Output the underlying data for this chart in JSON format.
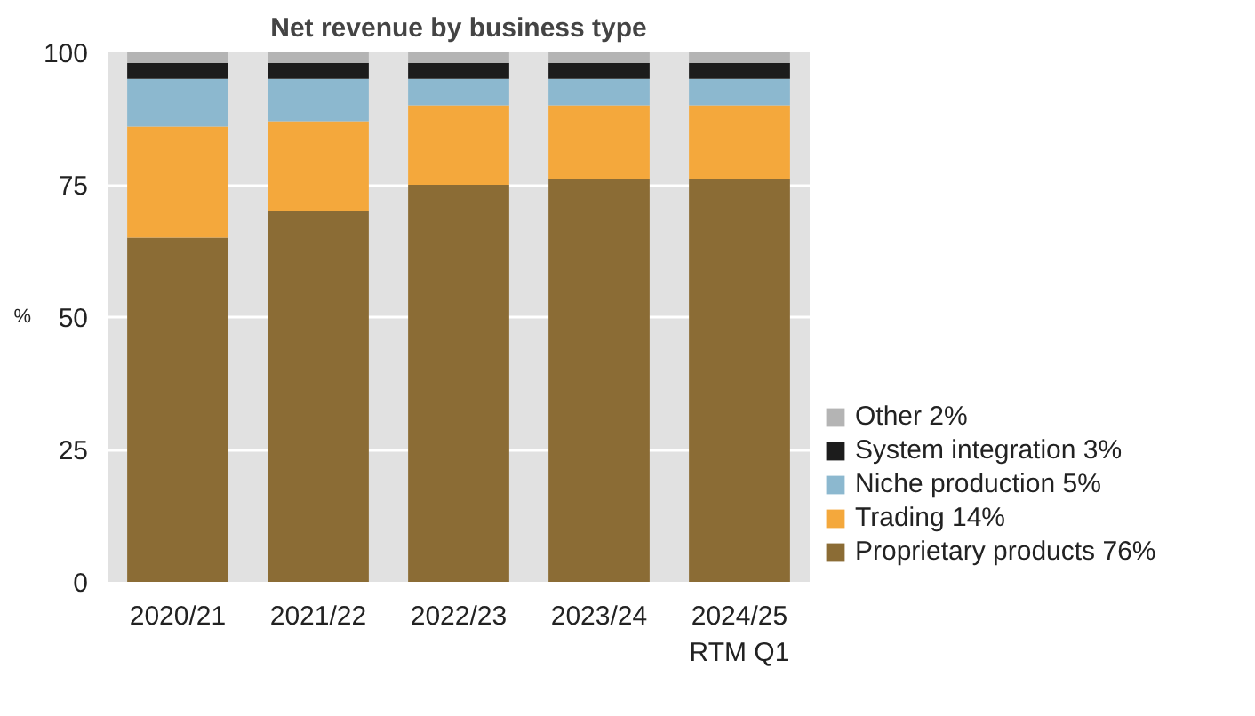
{
  "chart_data": {
    "type": "bar",
    "title": "Net revenue by business type",
    "ylabel": "%",
    "stacked": true,
    "categories": [
      "2020/21",
      "2021/22",
      "2022/23",
      "2023/24",
      "2024/25\nRTM Q1"
    ],
    "series": [
      {
        "name": "Proprietary products 76%",
        "color": "#8b6c35",
        "values": [
          65,
          70,
          75,
          76,
          76
        ]
      },
      {
        "name": "Trading 14%",
        "color": "#f4a83c",
        "values": [
          21,
          17,
          15,
          14,
          14
        ]
      },
      {
        "name": "Niche production 5%",
        "color": "#8cb8cf",
        "values": [
          9,
          8,
          5,
          5,
          5
        ]
      },
      {
        "name": "System integration 3%",
        "color": "#1c1c1c",
        "values": [
          3,
          3,
          3,
          3,
          3
        ]
      },
      {
        "name": "Other 2%",
        "color": "#b4b4b4",
        "values": [
          2,
          2,
          2,
          2,
          2
        ]
      }
    ],
    "ylim": [
      0,
      100
    ],
    "yticks": [
      0,
      25,
      50,
      75,
      100
    ],
    "grid": "y",
    "legend": "right"
  }
}
